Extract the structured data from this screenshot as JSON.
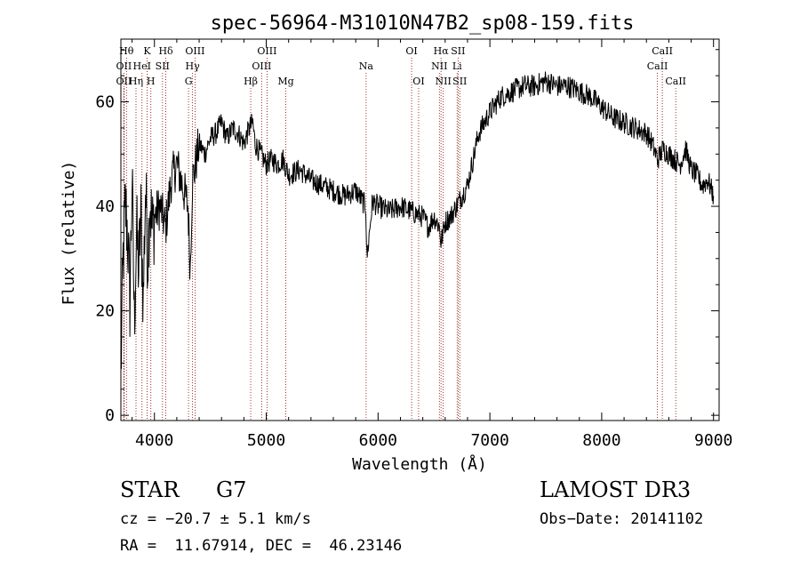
{
  "chart_data": {
    "type": "line",
    "title": "spec-56964-M31010N47B2_sp08-159.fits",
    "xlabel": "Wavelength (Å)",
    "ylabel": "Flux (relative)",
    "xlim": [
      3700,
      9050
    ],
    "ylim": [
      -1,
      72
    ],
    "x_ticks": [
      4000,
      5000,
      6000,
      7000,
      8000,
      9000
    ],
    "x_tick_labels": [
      "4000",
      "5000",
      "6000",
      "7000",
      "8000",
      "9000"
    ],
    "y_ticks": [
      0,
      20,
      40,
      60
    ],
    "y_tick_labels": [
      "0",
      "20",
      "40",
      "60"
    ],
    "grid": false,
    "line_color": "#000000",
    "marker_color": "#8b0000",
    "series": [
      {
        "name": "Flux",
        "x": [
          3700,
          3720,
          3740,
          3760,
          3780,
          3800,
          3820,
          3840,
          3860,
          3880,
          3900,
          3920,
          3940,
          3960,
          3980,
          4000,
          4050,
          4100,
          4150,
          4200,
          4250,
          4300,
          4320,
          4340,
          4360,
          4400,
          4450,
          4500,
          4550,
          4600,
          4650,
          4700,
          4750,
          4800,
          4850,
          4880,
          4900,
          4950,
          5000,
          5050,
          5100,
          5150,
          5200,
          5300,
          5400,
          5500,
          5600,
          5700,
          5800,
          5890,
          5900,
          5950,
          6000,
          6100,
          6200,
          6300,
          6400,
          6450,
          6500,
          6550,
          6563,
          6600,
          6650,
          6700,
          6750,
          6800,
          6900,
          7000,
          7100,
          7200,
          7300,
          7400,
          7500,
          7600,
          7700,
          7800,
          7900,
          8000,
          8100,
          8200,
          8300,
          8400,
          8450,
          8500,
          8550,
          8600,
          8650,
          8700,
          8750,
          8800,
          8850,
          8900,
          8950,
          9000
        ],
        "y": [
          8,
          30,
          40,
          35,
          22,
          45,
          18,
          35,
          28,
          38,
          22,
          44,
          30,
          42,
          35,
          38,
          40,
          36,
          45,
          48,
          44,
          40,
          28,
          45,
          47,
          52,
          50,
          53,
          54,
          56,
          53,
          55,
          54,
          52,
          55,
          56,
          52,
          50,
          48,
          49,
          48,
          49,
          46,
          47,
          45,
          44,
          43,
          42,
          43,
          40,
          30,
          41,
          40,
          39,
          40,
          39,
          38,
          36,
          38,
          36,
          33,
          37,
          38,
          40,
          42,
          44,
          54,
          58,
          61,
          62,
          63,
          63,
          64,
          63,
          63,
          62,
          61,
          59,
          57,
          56,
          55,
          54,
          52,
          49,
          51,
          50,
          49,
          48,
          51,
          47,
          46,
          44,
          45,
          42
        ]
      }
    ],
    "lines": [
      {
        "name": "OII",
        "wave": 3727,
        "row": 1
      },
      {
        "name": "OII",
        "wave": 3727,
        "row": 2
      },
      {
        "name": "Hθ",
        "wave": 3750,
        "row": 0
      },
      {
        "name": "Hη",
        "wave": 3835,
        "row": 2
      },
      {
        "name": "HeI",
        "wave": 3889,
        "row": 1
      },
      {
        "name": "K",
        "wave": 3934,
        "row": 0
      },
      {
        "name": "H",
        "wave": 3968,
        "row": 2
      },
      {
        "name": "SII",
        "wave": 4072,
        "row": 1
      },
      {
        "name": "Hδ",
        "wave": 4102,
        "row": 0
      },
      {
        "name": "G",
        "wave": 4305,
        "row": 2
      },
      {
        "name": "Hγ",
        "wave": 4341,
        "row": 1
      },
      {
        "name": "OIII",
        "wave": 4363,
        "row": 0
      },
      {
        "name": "Hβ",
        "wave": 4861,
        "row": 2
      },
      {
        "name": "OIII",
        "wave": 4959,
        "row": 1
      },
      {
        "name": "OIII",
        "wave": 5007,
        "row": 0
      },
      {
        "name": "Mg",
        "wave": 5175,
        "row": 2
      },
      {
        "name": "Na",
        "wave": 5893,
        "row": 1
      },
      {
        "name": "OI",
        "wave": 6300,
        "row": 0
      },
      {
        "name": "OI",
        "wave": 6363,
        "row": 2
      },
      {
        "name": "NII",
        "wave": 6548,
        "row": 1
      },
      {
        "name": "Hα",
        "wave": 6563,
        "row": 0
      },
      {
        "name": "NII",
        "wave": 6583,
        "row": 2
      },
      {
        "name": "Li",
        "wave": 6707,
        "row": 1
      },
      {
        "name": "SII",
        "wave": 6716,
        "row": 0
      },
      {
        "name": "SII",
        "wave": 6731,
        "row": 2
      },
      {
        "name": "CaII",
        "wave": 8498,
        "row": 1
      },
      {
        "name": "CaII",
        "wave": 8542,
        "row": 0
      },
      {
        "name": "CaII",
        "wave": 8662,
        "row": 2
      }
    ]
  },
  "info": {
    "object_class": "STAR",
    "subclass": "G7",
    "survey": "LAMOST DR3",
    "redshift": "cz = −20.7 ± 5.1 km/s",
    "obs_date": "Obs−Date: 20141102",
    "coords": "RA =  11.67914, DEC =  46.23146"
  }
}
